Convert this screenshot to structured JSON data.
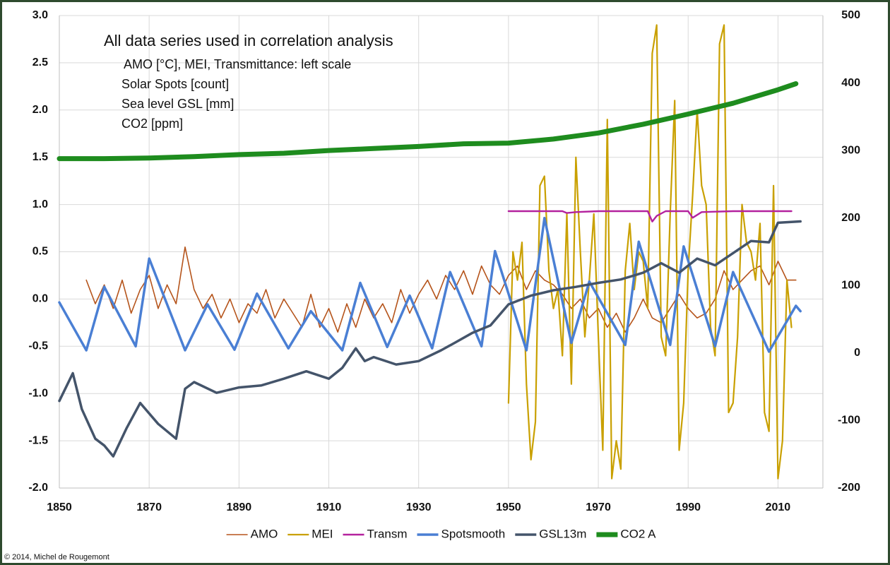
{
  "chart_data": {
    "type": "line",
    "annotations": [
      "All data series used in correlation analysis",
      "AMO [°C], MEI, Transmittance: left scale",
      "Solar Spots [count]",
      "Sea level GSL [mm]",
      "CO2 [ppm]"
    ],
    "source": "© 2014, Michel de Rougemont",
    "xlim": [
      1850,
      2020
    ],
    "xticks": [
      1850,
      1870,
      1890,
      1910,
      1930,
      1950,
      1970,
      1990,
      2010
    ],
    "ylim": [
      -2,
      3
    ],
    "yticks": [
      {
        "value": 3,
        "label": "3.0"
      },
      2.5,
      {
        "value": 2,
        "label": "2.0"
      },
      1.5,
      {
        "value": 1,
        "label": "1.0"
      },
      0.5,
      {
        "value": 0,
        "label": "0.0"
      },
      -0.5,
      {
        "value": -1,
        "label": "-1.0"
      },
      -1.5,
      {
        "value": -2,
        "label": "-2.0"
      }
    ],
    "y2lim": [
      -200,
      500
    ],
    "y2ticks": [
      500,
      400,
      300,
      200,
      100,
      0,
      -100,
      -200
    ],
    "grid": true,
    "legend": "bottom",
    "series": [
      {
        "name": "AMO",
        "color": "#b5541b",
        "x": [
          1856,
          1858,
          1860,
          1862,
          1864,
          1866,
          1868,
          1870,
          1872,
          1874,
          1876,
          1878,
          1880,
          1882,
          1884,
          1886,
          1888,
          1890,
          1892,
          1894,
          1896,
          1898,
          1900,
          1902,
          1904,
          1906,
          1908,
          1910,
          1912,
          1914,
          1916,
          1918,
          1920,
          1922,
          1924,
          1926,
          1928,
          1930,
          1932,
          1934,
          1936,
          1938,
          1940,
          1942,
          1944,
          1946,
          1948,
          1950,
          1952,
          1954,
          1956,
          1958,
          1960,
          1962,
          1964,
          1966,
          1968,
          1970,
          1972,
          1974,
          1976,
          1978,
          1980,
          1982,
          1984,
          1986,
          1988,
          1990,
          1992,
          1994,
          1996,
          1998,
          2000,
          2002,
          2004,
          2006,
          2008,
          2010,
          2012,
          2014
        ],
        "values": [
          0.2,
          -0.05,
          0.15,
          -0.1,
          0.2,
          -0.15,
          0.1,
          0.25,
          -0.1,
          0.15,
          -0.05,
          0.55,
          0.1,
          -0.1,
          0.05,
          -0.2,
          0.0,
          -0.25,
          -0.05,
          -0.15,
          0.1,
          -0.2,
          0.0,
          -0.15,
          -0.3,
          0.05,
          -0.3,
          -0.1,
          -0.35,
          -0.05,
          -0.3,
          0.0,
          -0.2,
          -0.05,
          -0.25,
          0.1,
          -0.15,
          0.05,
          0.2,
          0.0,
          0.25,
          0.1,
          0.3,
          0.05,
          0.35,
          0.15,
          0.05,
          0.25,
          0.35,
          0.1,
          0.3,
          0.2,
          0.15,
          0.05,
          -0.1,
          0.0,
          -0.2,
          -0.1,
          -0.3,
          -0.15,
          -0.35,
          -0.2,
          0.0,
          -0.2,
          -0.25,
          -0.1,
          0.05,
          -0.1,
          -0.2,
          -0.15,
          0.0,
          0.3,
          0.1,
          0.2,
          0.3,
          0.35,
          0.15,
          0.4,
          0.2,
          0.2
        ]
      },
      {
        "name": "MEI",
        "color": "#c9a000",
        "x": [
          1950,
          1951,
          1952,
          1953,
          1954,
          1955,
          1956,
          1957,
          1958,
          1959,
          1960,
          1961,
          1962,
          1963,
          1964,
          1965,
          1966,
          1967,
          1968,
          1969,
          1970,
          1971,
          1972,
          1973,
          1974,
          1975,
          1976,
          1977,
          1978,
          1979,
          1980,
          1981,
          1982,
          1983,
          1984,
          1985,
          1986,
          1987,
          1988,
          1989,
          1990,
          1991,
          1992,
          1993,
          1994,
          1995,
          1996,
          1997,
          1998,
          1999,
          2000,
          2001,
          2002,
          2003,
          2004,
          2005,
          2006,
          2007,
          2008,
          2009,
          2010,
          2011,
          2012,
          2013
        ],
        "values": [
          -1.1,
          0.5,
          0.2,
          0.6,
          -0.9,
          -1.7,
          -1.3,
          1.2,
          1.3,
          0.3,
          -0.1,
          0.1,
          -0.6,
          0.9,
          -0.9,
          1.5,
          0.5,
          -0.4,
          0.2,
          0.9,
          -0.4,
          -1.6,
          1.9,
          -1.9,
          -1.5,
          -1.8,
          0.3,
          0.8,
          0.1,
          0.5,
          0.4,
          -0.1,
          2.6,
          2.9,
          -0.4,
          -0.6,
          0.9,
          2.1,
          -1.6,
          -1.1,
          0.3,
          1.1,
          2.0,
          1.2,
          1.0,
          -0.3,
          -0.6,
          2.7,
          2.9,
          -1.2,
          -1.1,
          -0.4,
          1.0,
          0.6,
          0.5,
          0.2,
          0.8,
          -1.2,
          -1.4,
          1.2,
          -1.9,
          -1.5,
          0.2,
          -0.3
        ]
      },
      {
        "name": "Transm",
        "color": "#b4229e",
        "x": [
          1950,
          1960,
          1962,
          1963,
          1965,
          1970,
          1981,
          1982,
          1983,
          1985,
          1990,
          1991,
          1993,
          2000,
          2013
        ],
        "values": [
          0.93,
          0.93,
          0.93,
          0.91,
          0.92,
          0.93,
          0.93,
          0.82,
          0.88,
          0.93,
          0.93,
          0.86,
          0.92,
          0.93,
          0.93
        ]
      },
      {
        "name": "Spotsmooth",
        "color": "#4a7fd4",
        "axis": "y2",
        "x": [
          1850,
          1856,
          1860,
          1867,
          1870,
          1878,
          1883,
          1889,
          1894,
          1901,
          1906,
          1913,
          1917,
          1923,
          1928,
          1933,
          1937,
          1944,
          1947,
          1954,
          1958,
          1964,
          1968,
          1976,
          1979,
          1986,
          1989,
          1996,
          2000,
          2008,
          2014,
          2015
        ],
        "values": [
          75,
          4,
          98,
          10,
          140,
          4,
          72,
          5,
          88,
          7,
          62,
          4,
          104,
          9,
          85,
          7,
          120,
          10,
          151,
          4,
          200,
          15,
          106,
          12,
          165,
          12,
          158,
          10,
          120,
          2,
          70,
          62
        ]
      },
      {
        "name": "GSL13m",
        "color": "#44546a",
        "axis": "y2",
        "x": [
          1850,
          1853,
          1855,
          1858,
          1860,
          1862,
          1865,
          1868,
          1872,
          1876,
          1878,
          1880,
          1885,
          1890,
          1895,
          1900,
          1905,
          1910,
          1913,
          1916,
          1918,
          1920,
          1925,
          1930,
          1935,
          1938,
          1942,
          1946,
          1950,
          1955,
          1960,
          1965,
          1970,
          1975,
          1980,
          1984,
          1988,
          1992,
          1996,
          2000,
          2004,
          2008,
          2010,
          2015
        ],
        "values": [
          -71,
          -30,
          -83,
          -127,
          -137,
          -153,
          -111,
          -74,
          -105,
          -127,
          -53,
          -43,
          -59,
          -51,
          -48,
          -38,
          -27,
          -38,
          -22,
          7,
          -12,
          -6,
          -17,
          -12,
          4,
          15,
          30,
          41,
          72,
          85,
          93,
          98,
          104,
          109,
          119,
          133,
          119,
          140,
          130,
          148,
          166,
          164,
          193,
          195
        ]
      },
      {
        "name": "CO2 A",
        "color": "#1e8c1e",
        "axis": "y2",
        "x": [
          1850,
          1860,
          1870,
          1880,
          1890,
          1900,
          1910,
          1920,
          1930,
          1940,
          1950,
          1960,
          1970,
          1980,
          1990,
          2000,
          2010,
          2014
        ],
        "values": [
          288,
          288,
          289,
          291,
          294,
          296,
          300,
          303,
          306,
          310,
          311,
          317,
          326,
          339,
          354,
          370,
          390,
          399
        ]
      }
    ]
  }
}
